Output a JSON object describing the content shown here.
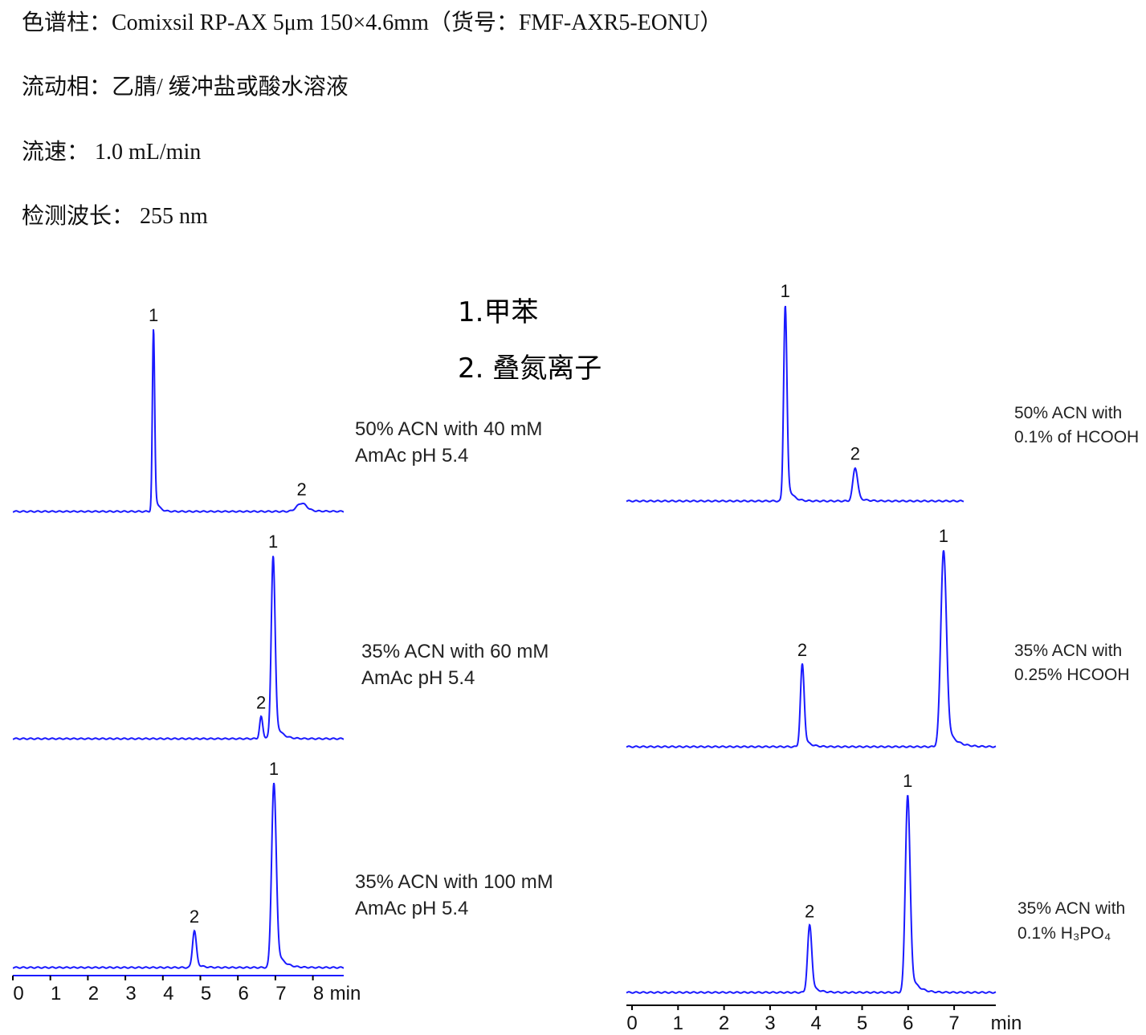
{
  "header": {
    "column": "色谱柱：Comixsil RP-AX 5μm  150×4.6mm（货号：FMF-AXR5-EONU）",
    "mobile_phase": "流动相：乙腈/ 缓冲盐或酸水溶液",
    "flow_rate": "流速：  1.0 mL/min",
    "wavelength": "检测波长：  255 nm"
  },
  "legend": [
    "1.甲苯",
    "2. 叠氮离子"
  ],
  "colors": {
    "trace": "#1a1aff",
    "axis": "#1a1aff",
    "axis_right": "#000000"
  },
  "chart_data": [
    {
      "type": "line",
      "group": "left",
      "condition": [
        "50% ACN with 40 mM",
        "AmAc pH 5.4"
      ],
      "xlabel": "min",
      "xlim": [
        0,
        8.9
      ],
      "peaks": [
        {
          "label": "1",
          "time": 3.75,
          "rel_height": 1.0,
          "width": 0.03
        },
        {
          "label": "2",
          "time": 7.7,
          "rel_height": 0.045,
          "width": 0.13
        }
      ]
    },
    {
      "type": "line",
      "group": "left",
      "condition": [
        "35% ACN with 60 mM",
        "AmAc pH 5.4"
      ],
      "xlabel": "min",
      "xlim": [
        0,
        8.9
      ],
      "peaks": [
        {
          "label": "2",
          "time": 6.62,
          "rel_height": 0.12,
          "width": 0.04
        },
        {
          "label": "1",
          "time": 6.94,
          "rel_height": 1.0,
          "width": 0.05
        }
      ]
    },
    {
      "type": "line",
      "group": "left",
      "condition": [
        "35% ACN with 100 mM",
        "AmAc pH 5.4"
      ],
      "xlabel": "min",
      "xlim": [
        0,
        8.9
      ],
      "x_ticks": [
        "0",
        "1",
        "2",
        "3",
        "4",
        "5",
        "6",
        "7",
        "8"
      ],
      "peaks": [
        {
          "label": "2",
          "time": 4.84,
          "rel_height": 0.2,
          "width": 0.05
        },
        {
          "label": "1",
          "time": 6.96,
          "rel_height": 1.0,
          "width": 0.06
        }
      ]
    },
    {
      "type": "line",
      "group": "right",
      "condition": [
        "50% ACN with",
        "0.1% of HCOOH"
      ],
      "xlabel": "min",
      "xlim": [
        0,
        7.9
      ],
      "peaks": [
        {
          "label": "1",
          "time": 3.33,
          "rel_height": 1.0,
          "width": 0.035
        },
        {
          "label": "2",
          "time": 4.85,
          "rel_height": 0.17,
          "width": 0.05
        }
      ]
    },
    {
      "type": "line",
      "group": "right",
      "condition": [
        "35% ACN with",
        "0.25% HCOOH"
      ],
      "xlabel": "min",
      "xlim": [
        0,
        7.9
      ],
      "peaks": [
        {
          "label": "2",
          "time": 3.7,
          "rel_height": 0.42,
          "width": 0.04
        },
        {
          "label": "1",
          "time": 6.77,
          "rel_height": 1.0,
          "width": 0.06
        }
      ]
    },
    {
      "type": "line",
      "group": "right",
      "condition": [
        "35% ACN with",
        "0.1% H₃PO₄"
      ],
      "xlabel": "min",
      "xlim": [
        0,
        7.9
      ],
      "x_ticks": [
        "0",
        "1",
        "2",
        "3",
        "4",
        "5",
        "6",
        "7"
      ],
      "peaks": [
        {
          "label": "2",
          "time": 3.86,
          "rel_height": 0.34,
          "width": 0.045
        },
        {
          "label": "1",
          "time": 5.99,
          "rel_height": 1.0,
          "width": 0.05
        }
      ]
    }
  ]
}
